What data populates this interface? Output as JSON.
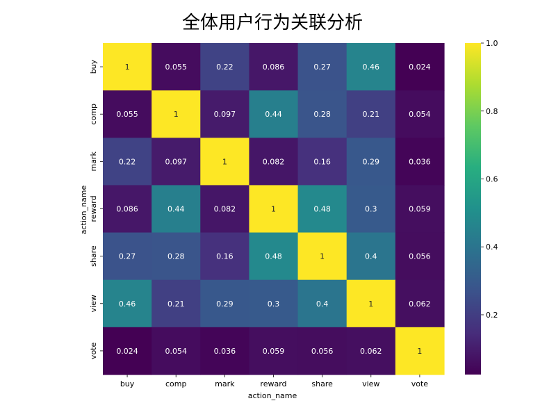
{
  "chart_data": {
    "type": "heatmap",
    "title": "全体用户行为关联分析",
    "xlabel": "action_name",
    "ylabel": "action_name",
    "x_categories": [
      "buy",
      "comp",
      "mark",
      "reward",
      "share",
      "view",
      "vote"
    ],
    "y_categories": [
      "buy",
      "comp",
      "mark",
      "reward",
      "share",
      "view",
      "vote"
    ],
    "values": [
      [
        1,
        0.055,
        0.22,
        0.086,
        0.27,
        0.46,
        0.024
      ],
      [
        0.055,
        1,
        0.097,
        0.44,
        0.28,
        0.21,
        0.054
      ],
      [
        0.22,
        0.097,
        1,
        0.082,
        0.16,
        0.29,
        0.036
      ],
      [
        0.086,
        0.44,
        0.082,
        1,
        0.48,
        0.3,
        0.059
      ],
      [
        0.27,
        0.28,
        0.16,
        0.48,
        1,
        0.4,
        0.056
      ],
      [
        0.46,
        0.21,
        0.29,
        0.3,
        0.4,
        1,
        0.062
      ],
      [
        0.024,
        0.054,
        0.036,
        0.059,
        0.056,
        0.062,
        1
      ]
    ],
    "labels": [
      [
        "1",
        "0.055",
        "0.22",
        "0.086",
        "0.27",
        "0.46",
        "0.024"
      ],
      [
        "0.055",
        "1",
        "0.097",
        "0.44",
        "0.28",
        "0.21",
        "0.054"
      ],
      [
        "0.22",
        "0.097",
        "1",
        "0.082",
        "0.16",
        "0.29",
        "0.036"
      ],
      [
        "0.086",
        "0.44",
        "0.082",
        "1",
        "0.48",
        "0.3",
        "0.059"
      ],
      [
        "0.27",
        "0.28",
        "0.16",
        "0.48",
        "1",
        "0.4",
        "0.056"
      ],
      [
        "0.46",
        "0.21",
        "0.29",
        "0.3",
        "0.4",
        "1",
        "0.062"
      ],
      [
        "0.024",
        "0.054",
        "0.036",
        "0.059",
        "0.056",
        "0.062",
        "1"
      ]
    ],
    "colormap": "viridis",
    "value_range": [
      0.024,
      1.0
    ],
    "colorbar_ticks": [
      "0.2",
      "0.4",
      "0.6",
      "0.8",
      "1.0"
    ],
    "colorbar_tick_values": [
      0.2,
      0.4,
      0.6,
      0.8,
      1.0
    ],
    "annotations_on": true,
    "grid": false
  }
}
